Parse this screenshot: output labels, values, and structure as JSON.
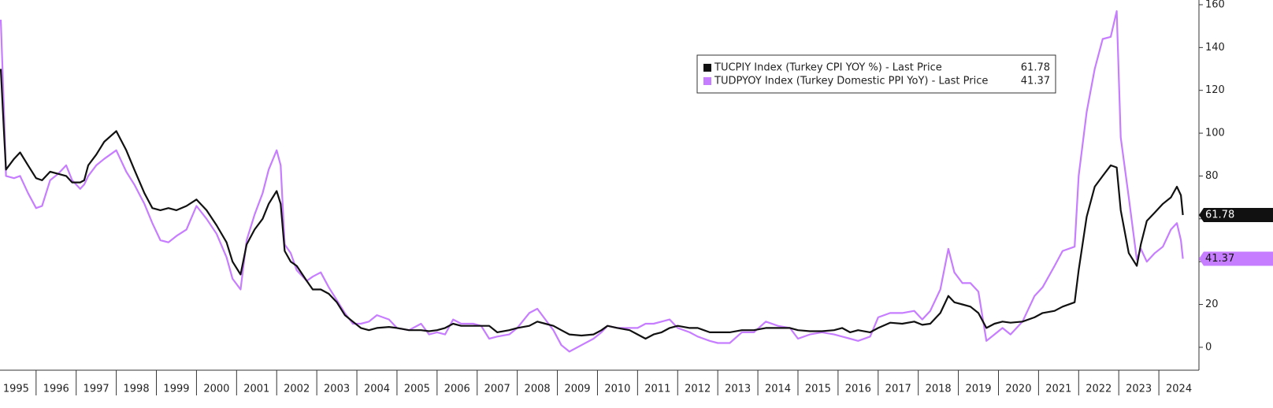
{
  "chart_data": {
    "type": "line",
    "x": [
      1995.12,
      1995.2,
      1995.25,
      1995.45,
      1995.6,
      1995.8,
      1996.0,
      1996.15,
      1996.35,
      1996.55,
      1996.75,
      1996.9,
      1997.1,
      1997.2,
      1997.3,
      1997.5,
      1997.7,
      1998.0,
      1998.25,
      1998.45,
      1998.7,
      1998.9,
      1999.1,
      1999.3,
      1999.5,
      1999.75,
      2000.0,
      2000.25,
      2000.5,
      2000.75,
      2000.9,
      2001.1,
      2001.25,
      2001.45,
      2001.65,
      2001.8,
      2002.0,
      2002.1,
      2002.2,
      2002.35,
      2002.5,
      2002.75,
      2002.9,
      2003.1,
      2003.3,
      2003.5,
      2003.7,
      2003.9,
      2004.1,
      2004.3,
      2004.5,
      2004.8,
      2005.0,
      2005.3,
      2005.6,
      2005.8,
      2006.0,
      2006.2,
      2006.4,
      2006.6,
      2006.9,
      2007.1,
      2007.3,
      2007.5,
      2007.8,
      2008.0,
      2008.3,
      2008.5,
      2008.7,
      2008.9,
      2009.1,
      2009.3,
      2009.6,
      2009.9,
      2010.1,
      2010.25,
      2010.5,
      2010.8,
      2011.0,
      2011.2,
      2011.4,
      2011.6,
      2011.8,
      2012.0,
      2012.3,
      2012.5,
      2012.8,
      2013.0,
      2013.3,
      2013.6,
      2013.9,
      2014.2,
      2014.5,
      2014.8,
      2015.0,
      2015.3,
      2015.6,
      2015.9,
      2016.1,
      2016.3,
      2016.5,
      2016.8,
      2017.0,
      2017.3,
      2017.6,
      2017.9,
      2018.1,
      2018.3,
      2018.55,
      2018.75,
      2018.9,
      2019.1,
      2019.3,
      2019.5,
      2019.7,
      2019.9,
      2020.1,
      2020.3,
      2020.6,
      2020.9,
      2021.1,
      2021.4,
      2021.6,
      2021.9,
      2022.0,
      2022.2,
      2022.4,
      2022.6,
      2022.8,
      2022.95,
      2023.05,
      2023.25,
      2023.45,
      2023.55,
      2023.7,
      2023.9,
      2024.1,
      2024.3,
      2024.45,
      2024.55,
      2024.6
    ],
    "series": [
      {
        "name": "TUCPIY Index (Turkey CPI YOY %) - Last Price",
        "color": "#111111",
        "values": [
          130,
          100,
          83,
          88,
          91,
          85,
          79,
          78,
          82,
          81,
          80,
          77,
          77,
          78,
          85,
          90,
          96,
          101,
          92,
          83,
          72,
          65,
          64,
          65,
          64,
          66,
          69,
          64,
          57,
          49,
          40,
          34,
          48,
          55,
          60,
          67,
          73,
          67,
          45,
          40,
          38,
          31,
          27,
          27,
          25,
          21,
          15,
          12,
          9,
          8,
          9,
          9.5,
          9,
          8,
          8,
          7.5,
          8,
          9,
          11,
          10,
          10,
          10,
          10,
          7,
          8,
          9,
          10,
          12,
          11,
          10,
          8,
          6,
          5.5,
          6,
          8,
          10,
          9,
          8,
          6,
          4,
          6,
          7,
          9,
          10,
          9,
          9,
          7,
          7,
          7,
          8,
          8,
          9,
          9,
          9,
          8,
          7.5,
          7.5,
          8,
          9,
          7,
          8,
          7,
          9,
          11.5,
          11,
          12,
          10.5,
          11,
          16,
          24,
          21,
          20,
          19,
          16,
          9,
          11,
          12,
          11.5,
          12,
          14,
          16,
          17,
          19,
          21,
          36,
          61,
          75,
          80,
          85,
          84,
          64,
          44,
          38,
          48,
          59,
          63,
          67,
          70,
          75,
          71,
          61.78
        ]
      },
      {
        "name": "TUDPYOY Index (Turkey Domestic PPI YoY) - Last Price",
        "color": "#c77dff",
        "values": [
          153,
          110,
          80,
          79,
          80,
          72,
          65,
          66,
          78,
          81,
          85,
          78,
          74,
          76,
          80,
          85,
          88,
          92,
          82,
          76,
          67,
          58,
          50,
          49,
          52,
          55,
          66,
          60,
          53,
          42,
          32,
          27,
          50,
          62,
          72,
          83,
          92,
          85,
          48,
          44,
          36,
          31,
          33,
          35,
          28,
          22,
          16,
          11,
          11,
          12,
          15,
          13,
          9,
          8,
          11,
          6,
          7,
          6,
          13,
          11,
          11,
          10,
          4,
          5,
          6,
          9,
          16,
          18,
          13,
          8,
          1,
          -2,
          1,
          4,
          7,
          10,
          9,
          9,
          9,
          11,
          11,
          12,
          13,
          9,
          7,
          5,
          3,
          2,
          2,
          7,
          7,
          12,
          10,
          9,
          4,
          6,
          7,
          6,
          5,
          4,
          3,
          5,
          14,
          16,
          16,
          17,
          13,
          17,
          27,
          46,
          35,
          30,
          30,
          26,
          3,
          6,
          9,
          6,
          12,
          24,
          28,
          38,
          45,
          47,
          80,
          110,
          130,
          144,
          145,
          157,
          98,
          70,
          41,
          46,
          40,
          44,
          47,
          55,
          58,
          50,
          41.37
        ]
      }
    ],
    "xlim": [
      1995.1,
      2025.0
    ],
    "xticks": [
      1995,
      1996,
      1997,
      1998,
      1999,
      2000,
      2001,
      2002,
      2003,
      2004,
      2005,
      2006,
      2007,
      2008,
      2009,
      2010,
      2011,
      2012,
      2013,
      2014,
      2015,
      2016,
      2017,
      2018,
      2019,
      2020,
      2021,
      2022,
      2023,
      2024
    ],
    "ylim": [
      -10.7,
      162.2
    ],
    "yticks": [
      0,
      20,
      40,
      60,
      80,
      100,
      120,
      140,
      160
    ],
    "grid": false,
    "legend": "top-right"
  }
}
